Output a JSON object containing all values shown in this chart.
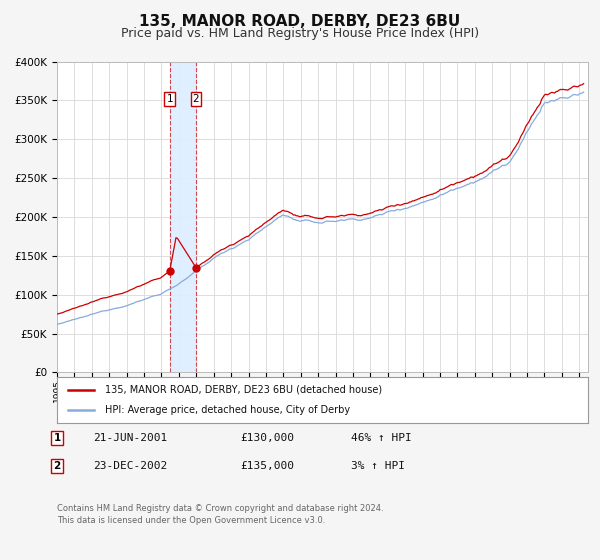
{
  "title": "135, MANOR ROAD, DERBY, DE23 6BU",
  "subtitle": "Price paid vs. HM Land Registry's House Price Index (HPI)",
  "ylim": [
    0,
    400000
  ],
  "yticks": [
    0,
    50000,
    100000,
    150000,
    200000,
    250000,
    300000,
    350000,
    400000
  ],
  "xlim_start": 1995.0,
  "xlim_end": 2025.5,
  "x_years": [
    1995,
    1996,
    1997,
    1998,
    1999,
    2000,
    2001,
    2002,
    2003,
    2004,
    2005,
    2006,
    2007,
    2008,
    2009,
    2010,
    2011,
    2012,
    2013,
    2014,
    2015,
    2016,
    2017,
    2018,
    2019,
    2020,
    2021,
    2022,
    2023,
    2024,
    2025
  ],
  "red_line_color": "#cc0000",
  "blue_line_color": "#88aadd",
  "shade_color": "#ddeeff",
  "shade_x1": 2001.47,
  "shade_x2": 2002.98,
  "sale1_x": 2001.47,
  "sale1_y": 130000,
  "sale2_x": 2002.98,
  "sale2_y": 135000,
  "legend_label_red": "135, MANOR ROAD, DERBY, DE23 6BU (detached house)",
  "legend_label_blue": "HPI: Average price, detached house, City of Derby",
  "table_rows": [
    {
      "num": "1",
      "date": "21-JUN-2001",
      "price": "£130,000",
      "hpi": "46% ↑ HPI"
    },
    {
      "num": "2",
      "date": "23-DEC-2002",
      "price": "£135,000",
      "hpi": "3% ↑ HPI"
    }
  ],
  "footnote1": "Contains HM Land Registry data © Crown copyright and database right 2024.",
  "footnote2": "This data is licensed under the Open Government Licence v3.0.",
  "background_color": "#f5f5f5",
  "plot_bg_color": "#ffffff",
  "grid_color": "#dddddd",
  "title_fontsize": 11,
  "subtitle_fontsize": 9
}
